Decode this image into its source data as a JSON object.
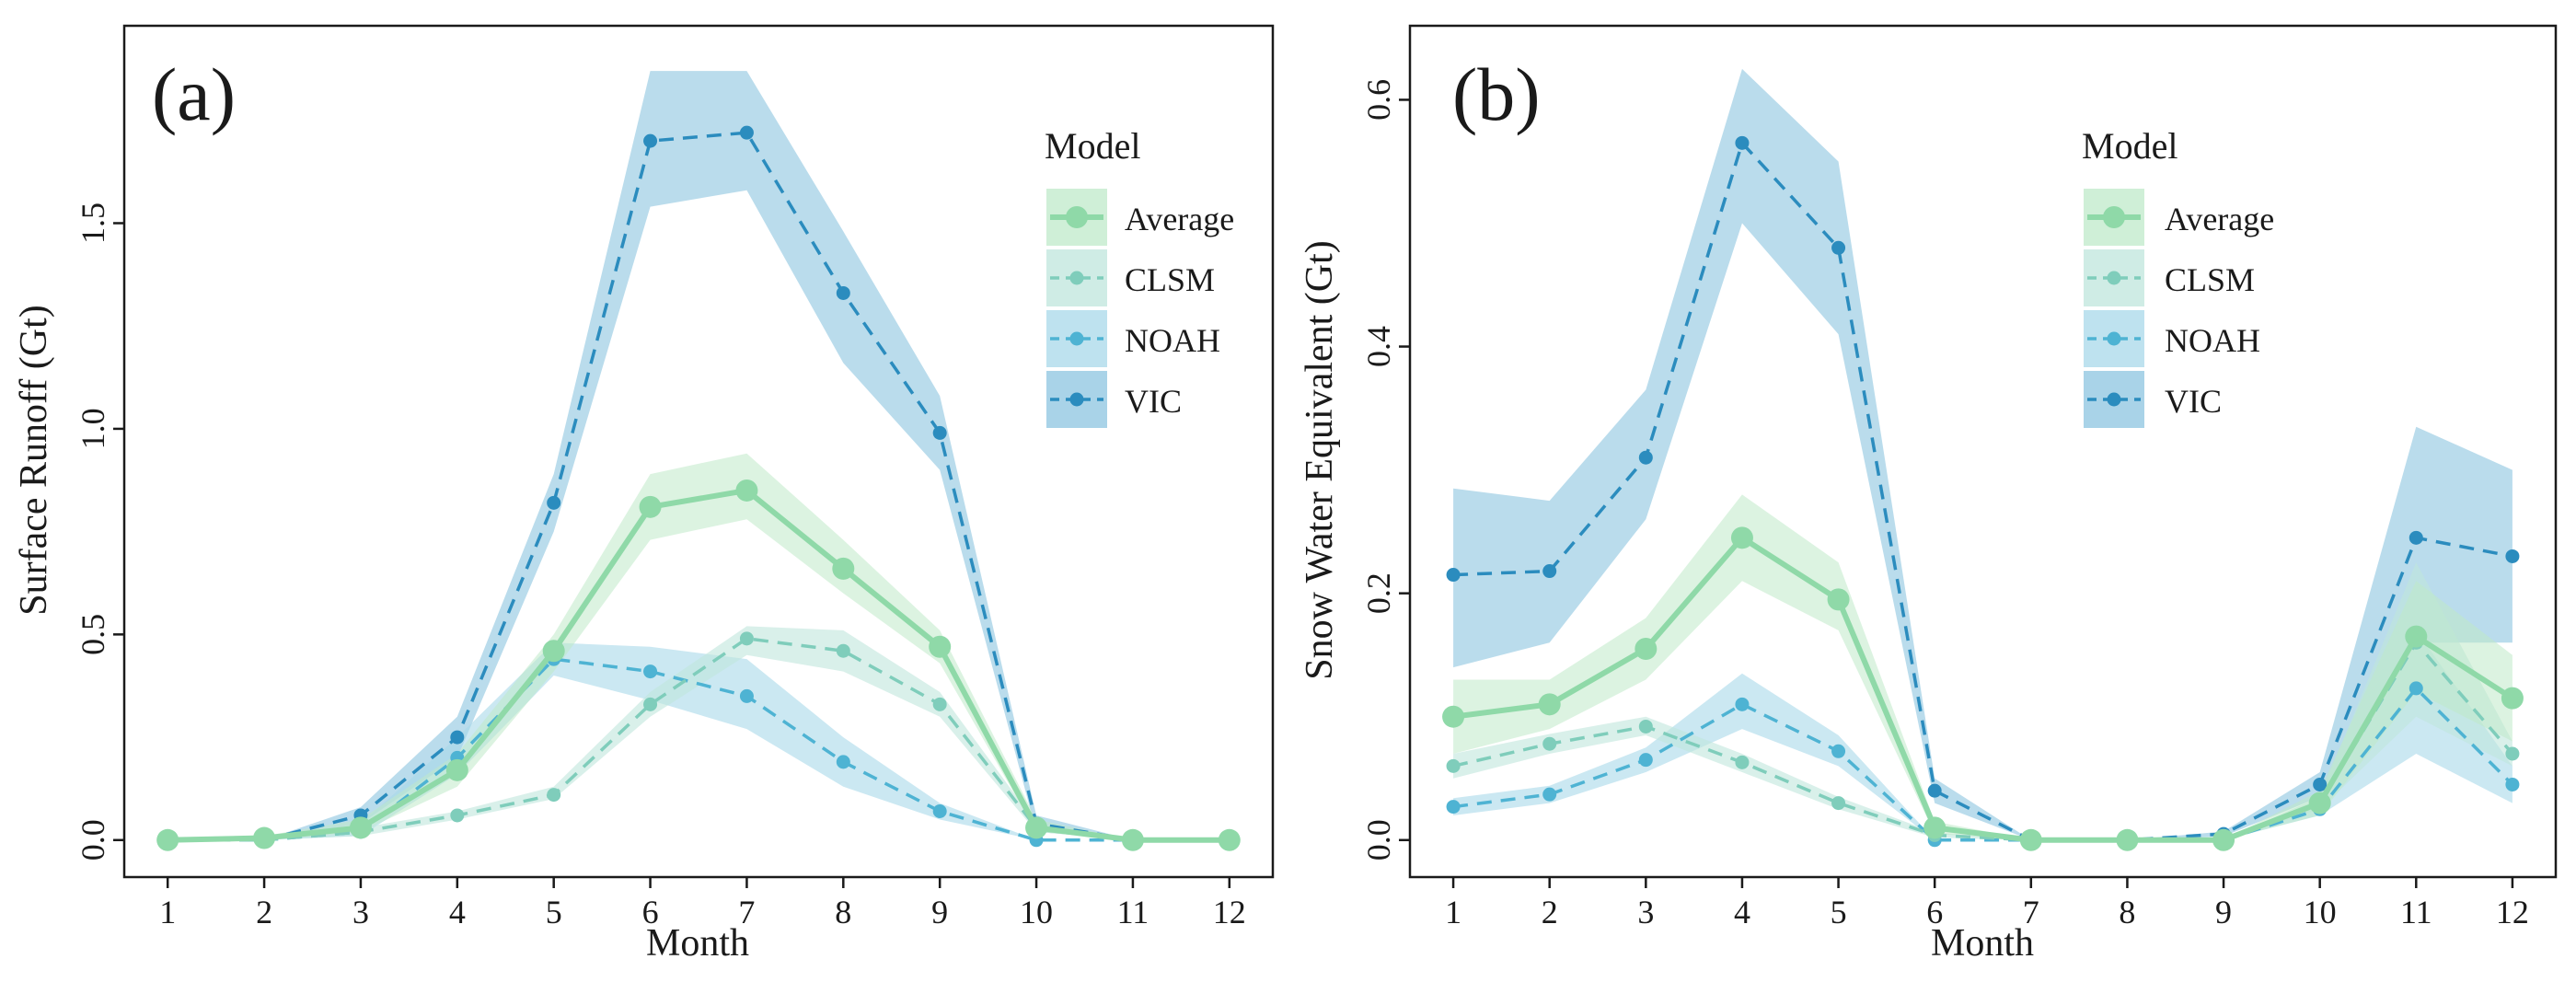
{
  "chart_data": [
    {
      "type": "line",
      "panel_label": "(a)",
      "xlabel": "Month",
      "ylabel": "Surface Runoff (Gt)",
      "x": [
        1,
        2,
        3,
        4,
        5,
        6,
        7,
        8,
        9,
        10,
        11,
        12
      ],
      "x_tick_labels": [
        "1",
        "2",
        "3",
        "4",
        "5",
        "6",
        "7",
        "8",
        "9",
        "10",
        "11",
        "12"
      ],
      "xlim": [
        0.55,
        12.45
      ],
      "ylim": [
        -0.09,
        1.98
      ],
      "y_ticks": [
        0,
        0.5,
        1.0,
        1.5
      ],
      "y_tick_labels": [
        "0.0",
        "0.5",
        "1.0",
        "1.5"
      ],
      "legend": {
        "title": "Model",
        "position": "top-right",
        "entries": [
          "Average",
          "CLSM",
          "NOAH",
          "VIC"
        ]
      },
      "series": [
        {
          "name": "Average",
          "style": "solid",
          "color": "#8fd9a8",
          "band_color": "#bfe9c9",
          "values": [
            0,
            0.005,
            0.03,
            0.17,
            0.46,
            0.81,
            0.85,
            0.66,
            0.47,
            0.03,
            0,
            0
          ],
          "lower": [
            0,
            0,
            0.02,
            0.13,
            0.41,
            0.73,
            0.78,
            0.6,
            0.43,
            0.02,
            0,
            0
          ],
          "upper": [
            0,
            0.01,
            0.05,
            0.21,
            0.5,
            0.89,
            0.94,
            0.73,
            0.51,
            0.05,
            0,
            0
          ]
        },
        {
          "name": "CLSM",
          "style": "dashed",
          "color": "#7fcdbb",
          "band_color": "#bfe6dc",
          "values": [
            0,
            0,
            0.02,
            0.06,
            0.11,
            0.33,
            0.49,
            0.46,
            0.33,
            0.03,
            0,
            0
          ],
          "lower": [
            0,
            0,
            0.01,
            0.05,
            0.1,
            0.3,
            0.45,
            0.41,
            0.3,
            0.02,
            0,
            0
          ],
          "upper": [
            0,
            0,
            0.03,
            0.07,
            0.13,
            0.36,
            0.52,
            0.51,
            0.36,
            0.04,
            0,
            0
          ]
        },
        {
          "name": "NOAH",
          "style": "dashed",
          "color": "#4eb3d3",
          "band_color": "#a8d8ea",
          "values": [
            0,
            0,
            0.02,
            0.2,
            0.44,
            0.41,
            0.35,
            0.19,
            0.07,
            0,
            0,
            0
          ],
          "lower": [
            0,
            0,
            0.01,
            0.16,
            0.4,
            0.34,
            0.27,
            0.13,
            0.05,
            0,
            0,
            0
          ],
          "upper": [
            0,
            0,
            0.04,
            0.25,
            0.48,
            0.47,
            0.44,
            0.25,
            0.09,
            0,
            0,
            0
          ]
        },
        {
          "name": "VIC",
          "style": "dashed",
          "color": "#2b8cbe",
          "band_color": "#8cc4e0",
          "values": [
            0,
            0,
            0.06,
            0.25,
            0.82,
            1.7,
            1.72,
            1.33,
            0.99,
            0.04,
            0,
            0
          ],
          "lower": [
            0,
            0,
            0.04,
            0.2,
            0.75,
            1.54,
            1.58,
            1.16,
            0.9,
            0.02,
            0,
            0
          ],
          "upper": [
            0,
            0,
            0.08,
            0.3,
            0.89,
            1.87,
            1.87,
            1.48,
            1.08,
            0.06,
            0,
            0
          ]
        }
      ]
    },
    {
      "type": "line",
      "panel_label": "(b)",
      "xlabel": "Month",
      "ylabel": "Snow Water Equivalent (Gt)",
      "x": [
        1,
        2,
        3,
        4,
        5,
        6,
        7,
        8,
        9,
        10,
        11,
        12
      ],
      "x_tick_labels": [
        "1",
        "2",
        "3",
        "4",
        "5",
        "6",
        "7",
        "8",
        "9",
        "10",
        "11",
        "12"
      ],
      "xlim": [
        0.55,
        12.45
      ],
      "ylim": [
        -0.03,
        0.66
      ],
      "y_ticks": [
        0,
        0.2,
        0.4,
        0.6
      ],
      "y_tick_labels": [
        "0.0",
        "0.2",
        "0.4",
        "0.6"
      ],
      "legend": {
        "title": "Model",
        "position": "top-right",
        "entries": [
          "Average",
          "CLSM",
          "NOAH",
          "VIC"
        ]
      },
      "series": [
        {
          "name": "Average",
          "style": "solid",
          "color": "#8fd9a8",
          "band_color": "#bfe9c9",
          "values": [
            0.1,
            0.11,
            0.155,
            0.245,
            0.195,
            0.01,
            0,
            0,
            0,
            0.03,
            0.165,
            0.115
          ],
          "lower": [
            0.07,
            0.09,
            0.13,
            0.21,
            0.17,
            0.005,
            0,
            0,
            0,
            0.02,
            0.12,
            0.08
          ],
          "upper": [
            0.13,
            0.13,
            0.18,
            0.28,
            0.225,
            0.015,
            0,
            0,
            0,
            0.04,
            0.21,
            0.15
          ]
        },
        {
          "name": "CLSM",
          "style": "dashed",
          "color": "#7fcdbb",
          "band_color": "#bfe6dc",
          "values": [
            0.06,
            0.078,
            0.092,
            0.063,
            0.03,
            0.004,
            0,
            0,
            0,
            0.03,
            0.16,
            0.07
          ],
          "lower": [
            0.05,
            0.07,
            0.085,
            0.055,
            0.025,
            0.002,
            0,
            0,
            0,
            0.025,
            0.1,
            0.06
          ],
          "upper": [
            0.07,
            0.086,
            0.1,
            0.07,
            0.035,
            0.006,
            0,
            0,
            0,
            0.035,
            0.225,
            0.08
          ]
        },
        {
          "name": "NOAH",
          "style": "dashed",
          "color": "#4eb3d3",
          "band_color": "#a8d8ea",
          "values": [
            0.027,
            0.037,
            0.065,
            0.11,
            0.072,
            0,
            0,
            0,
            0,
            0.025,
            0.123,
            0.045
          ],
          "lower": [
            0.02,
            0.03,
            0.055,
            0.09,
            0.06,
            0,
            0,
            0,
            0,
            0.02,
            0.07,
            0.03
          ],
          "upper": [
            0.034,
            0.044,
            0.075,
            0.135,
            0.085,
            0,
            0,
            0,
            0,
            0.03,
            0.17,
            0.06
          ]
        },
        {
          "name": "VIC",
          "style": "dashed",
          "color": "#2b8cbe",
          "band_color": "#8cc4e0",
          "values": [
            0.215,
            0.218,
            0.31,
            0.565,
            0.48,
            0.04,
            0,
            0,
            0.005,
            0.045,
            0.245,
            0.23
          ],
          "lower": [
            0.14,
            0.16,
            0.26,
            0.5,
            0.41,
            0.03,
            0,
            0,
            0.003,
            0.035,
            0.16,
            0.16
          ],
          "upper": [
            0.285,
            0.275,
            0.365,
            0.625,
            0.55,
            0.05,
            0,
            0,
            0.007,
            0.055,
            0.335,
            0.3
          ]
        }
      ]
    }
  ]
}
